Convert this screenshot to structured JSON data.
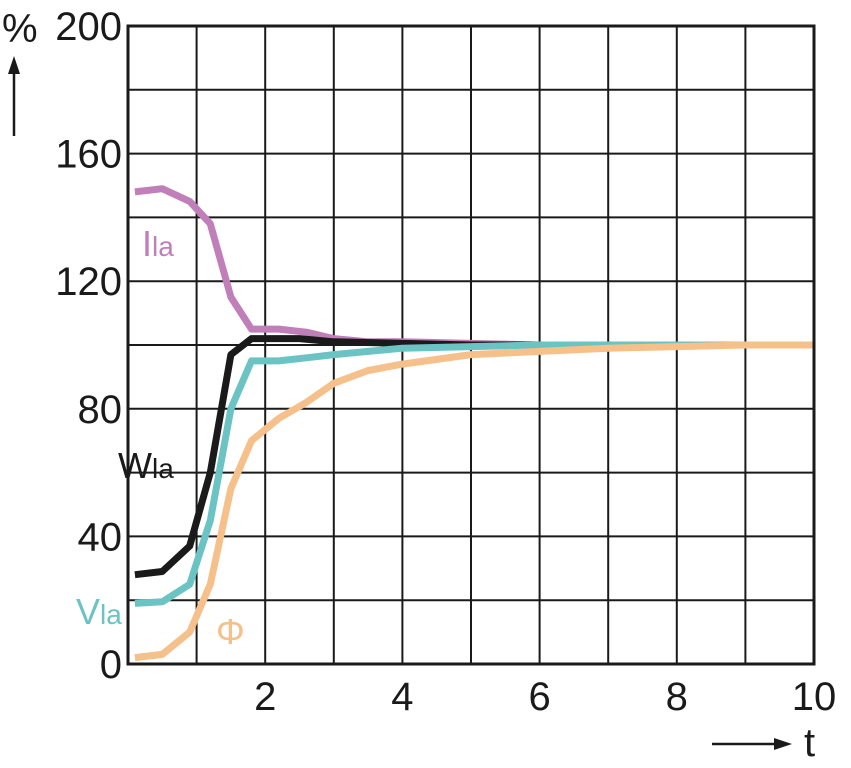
{
  "chart_data": {
    "type": "line",
    "title": "",
    "xlabel": "t",
    "ylabel": "%",
    "xlim": [
      0,
      10
    ],
    "ylim": [
      0,
      200
    ],
    "x_ticks": [
      2,
      4,
      6,
      8,
      10
    ],
    "y_ticks": [
      0,
      40,
      80,
      120,
      160,
      200
    ],
    "x_grid_step": 1,
    "y_grid_step": 20,
    "grid": true,
    "legend": "inline labels",
    "series": [
      {
        "key": "I",
        "name": "I",
        "label_main": "I",
        "label_sub": "la",
        "color": "#c07fb8",
        "x": [
          0.1,
          0.5,
          0.9,
          1.2,
          1.5,
          1.8,
          2.2,
          2.6,
          3.0,
          3.5,
          4.0,
          5.0,
          6.0,
          7.0,
          8.0,
          9.0,
          10.0
        ],
        "y": [
          148,
          149,
          145,
          138,
          115,
          105,
          105,
          104,
          102,
          101,
          101,
          100.5,
          100,
          100,
          100,
          100,
          100
        ]
      },
      {
        "key": "W",
        "name": "W",
        "label_main": "W",
        "label_sub": "la",
        "color": "#1a1a1a",
        "x": [
          0.1,
          0.5,
          0.9,
          1.2,
          1.5,
          1.8,
          2.5,
          3.0,
          4.0,
          5.0,
          6.0,
          8.0,
          10.0
        ],
        "y": [
          28,
          29,
          37,
          60,
          97,
          102,
          102,
          101,
          100.5,
          100,
          100,
          100,
          100
        ]
      },
      {
        "key": "V",
        "name": "V",
        "label_main": "V",
        "label_sub": "la",
        "color": "#6cc3c3",
        "x": [
          0.1,
          0.5,
          0.9,
          1.2,
          1.5,
          1.8,
          2.2,
          2.6,
          3.0,
          3.5,
          4.0,
          5.0,
          6.0,
          8.0,
          10.0
        ],
        "y": [
          19,
          19.5,
          25,
          45,
          80,
          95,
          95,
          96,
          97,
          98,
          99,
          99.5,
          100,
          100,
          100
        ]
      },
      {
        "key": "Phi",
        "name": "Φ",
        "label_main": "Φ",
        "label_sub": "",
        "color": "#f5c08a",
        "x": [
          0.1,
          0.5,
          0.9,
          1.2,
          1.5,
          1.8,
          2.2,
          2.6,
          3.0,
          3.5,
          4.0,
          5.0,
          6.0,
          7.0,
          8.0,
          9.0,
          10.0
        ],
        "y": [
          2,
          3,
          10,
          25,
          55,
          70,
          77,
          82,
          88,
          92,
          94,
          97,
          98,
          99,
          99.5,
          100,
          100
        ]
      }
    ]
  }
}
